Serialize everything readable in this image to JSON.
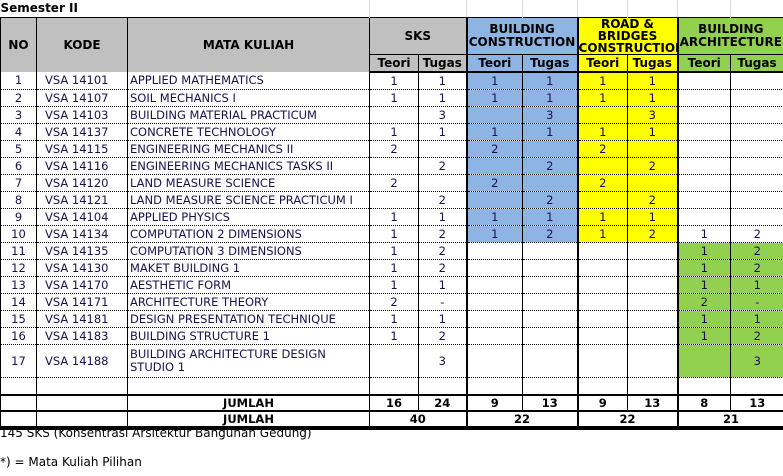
{
  "title": "Semester II",
  "headers": {
    "no": "NO",
    "kode": "KODE",
    "mata": "MATA KULIAH",
    "sks": "SKS",
    "bc": "BUILDING CONSTRUCTION",
    "rb": "ROAD & BRIDGES CONSTRUCTION",
    "ba": "BUILDING ARCHITECTURE",
    "teori": "Teori",
    "tugas": "Tugas"
  },
  "colors": {
    "header": "#c0c0c0",
    "building_construction": "#8db4e2",
    "road_bridges": "#ffff00",
    "building_architecture": "#92d050"
  },
  "rows": [
    {
      "no": "1",
      "kode": "VSA 14101",
      "mata": "APPLIED MATHEMATICS",
      "st": "1",
      "sg": "1",
      "bt": "1",
      "bg": "1",
      "rt": "1",
      "rg": "1",
      "at": "",
      "ag": ""
    },
    {
      "no": "2",
      "kode": "VSA 14107",
      "mata": "SOIL MECHANICS I",
      "st": "1",
      "sg": "1",
      "bt": "1",
      "bg": "1",
      "rt": "1",
      "rg": "1",
      "at": "",
      "ag": ""
    },
    {
      "no": "3",
      "kode": "VSA 14103",
      "mata": "BUILDING MATERIAL PRACTICUM",
      "st": "",
      "sg": "3",
      "bt": "",
      "bg": "3",
      "rt": "",
      "rg": "3",
      "at": "",
      "ag": ""
    },
    {
      "no": "4",
      "kode": "VSA 14137",
      "mata": "CONCRETE TECHNOLOGY",
      "st": "1",
      "sg": "1",
      "bt": "1",
      "bg": "1",
      "rt": "1",
      "rg": "1",
      "at": "",
      "ag": ""
    },
    {
      "no": "5",
      "kode": "VSA 14115",
      "mata": "ENGINEERING MECHANICS II",
      "st": "2",
      "sg": "",
      "bt": "2",
      "bg": "",
      "rt": "2",
      "rg": "",
      "at": "",
      "ag": ""
    },
    {
      "no": "6",
      "kode": "VSA 14116",
      "mata": "ENGINEERING MECHANICS TASKS II",
      "st": "",
      "sg": "2",
      "bt": "",
      "bg": "2",
      "rt": "",
      "rg": "2",
      "at": "",
      "ag": ""
    },
    {
      "no": "7",
      "kode": "VSA 14120",
      "mata": "LAND MEASURE SCIENCE",
      "st": "2",
      "sg": "",
      "bt": "2",
      "bg": "",
      "rt": "2",
      "rg": "",
      "at": "",
      "ag": ""
    },
    {
      "no": "8",
      "kode": "VSA 14121",
      "mata": "LAND MEASURE SCIENCE PRACTICUM I",
      "st": "",
      "sg": "2",
      "bt": "",
      "bg": "2",
      "rt": "",
      "rg": "2",
      "at": "",
      "ag": ""
    },
    {
      "no": "9",
      "kode": "VSA 14104",
      "mata": "APPLIED PHYSICS",
      "st": "1",
      "sg": "1",
      "bt": "1",
      "bg": "1",
      "rt": "1",
      "rg": "1",
      "at": "",
      "ag": ""
    },
    {
      "no": "10",
      "kode": "VSA 14134",
      "mata": "COMPUTATION 2 DIMENSIONS",
      "st": "1",
      "sg": "2",
      "bt": "1",
      "bg": "2",
      "rt": "1",
      "rg": "2",
      "at": "1",
      "ag": "2"
    },
    {
      "no": "11",
      "kode": "VSA 14135",
      "mata": "COMPUTATION 3 DIMENSIONS",
      "st": "1",
      "sg": "2",
      "bt": "",
      "bg": "",
      "rt": "",
      "rg": "",
      "at": "1",
      "ag": "2"
    },
    {
      "no": "12",
      "kode": "VSA 14130",
      "mata": "MAKET BUILDING 1",
      "st": "1",
      "sg": "2",
      "bt": "",
      "bg": "",
      "rt": "",
      "rg": "",
      "at": "1",
      "ag": "2"
    },
    {
      "no": "13",
      "kode": "VSA 14170",
      "mata": "AESTHETIC FORM",
      "st": "1",
      "sg": "1",
      "bt": "",
      "bg": "",
      "rt": "",
      "rg": "",
      "at": "1",
      "ag": "1"
    },
    {
      "no": "14",
      "kode": "VSA 14171",
      "mata": "ARCHITECTURE THEORY",
      "st": "2",
      "sg": "-",
      "bt": "",
      "bg": "",
      "rt": "",
      "rg": "",
      "at": "2",
      "ag": "-"
    },
    {
      "no": "15",
      "kode": "VSA 14181",
      "mata": "DESIGN PRESENTATION TECHNIQUE",
      "st": "1",
      "sg": "1",
      "bt": "",
      "bg": "",
      "rt": "",
      "rg": "",
      "at": "1",
      "ag": "1"
    },
    {
      "no": "16",
      "kode": "VSA 14183",
      "mata": "BUILDING STRUCTURE 1",
      "st": "1",
      "sg": "2",
      "bt": "",
      "bg": "",
      "rt": "",
      "rg": "",
      "at": "1",
      "ag": "2"
    },
    {
      "no": "17",
      "kode": "VSA 14188",
      "mata": "BUILDING ARCHITECTURE DESIGN STUDIO 1",
      "st": "",
      "sg": "3",
      "bt": "",
      "bg": "",
      "rt": "",
      "rg": "",
      "at": "",
      "ag": "3"
    }
  ],
  "jumlah": {
    "label": "JUMLAH",
    "st": "16",
    "sg": "24",
    "bt": "9",
    "bg": "13",
    "rt": "9",
    "rg": "13",
    "at": "8",
    "ag": "13"
  },
  "total": {
    "label": "JUMLAH",
    "sks": "40",
    "bc": "22",
    "rb": "22",
    "ba": "21"
  },
  "notes": [
    "145 SKS (Konsentrasi Arsitektur Bangunan Gedung)",
    "*) = Mata Kuliah Pilihan"
  ]
}
